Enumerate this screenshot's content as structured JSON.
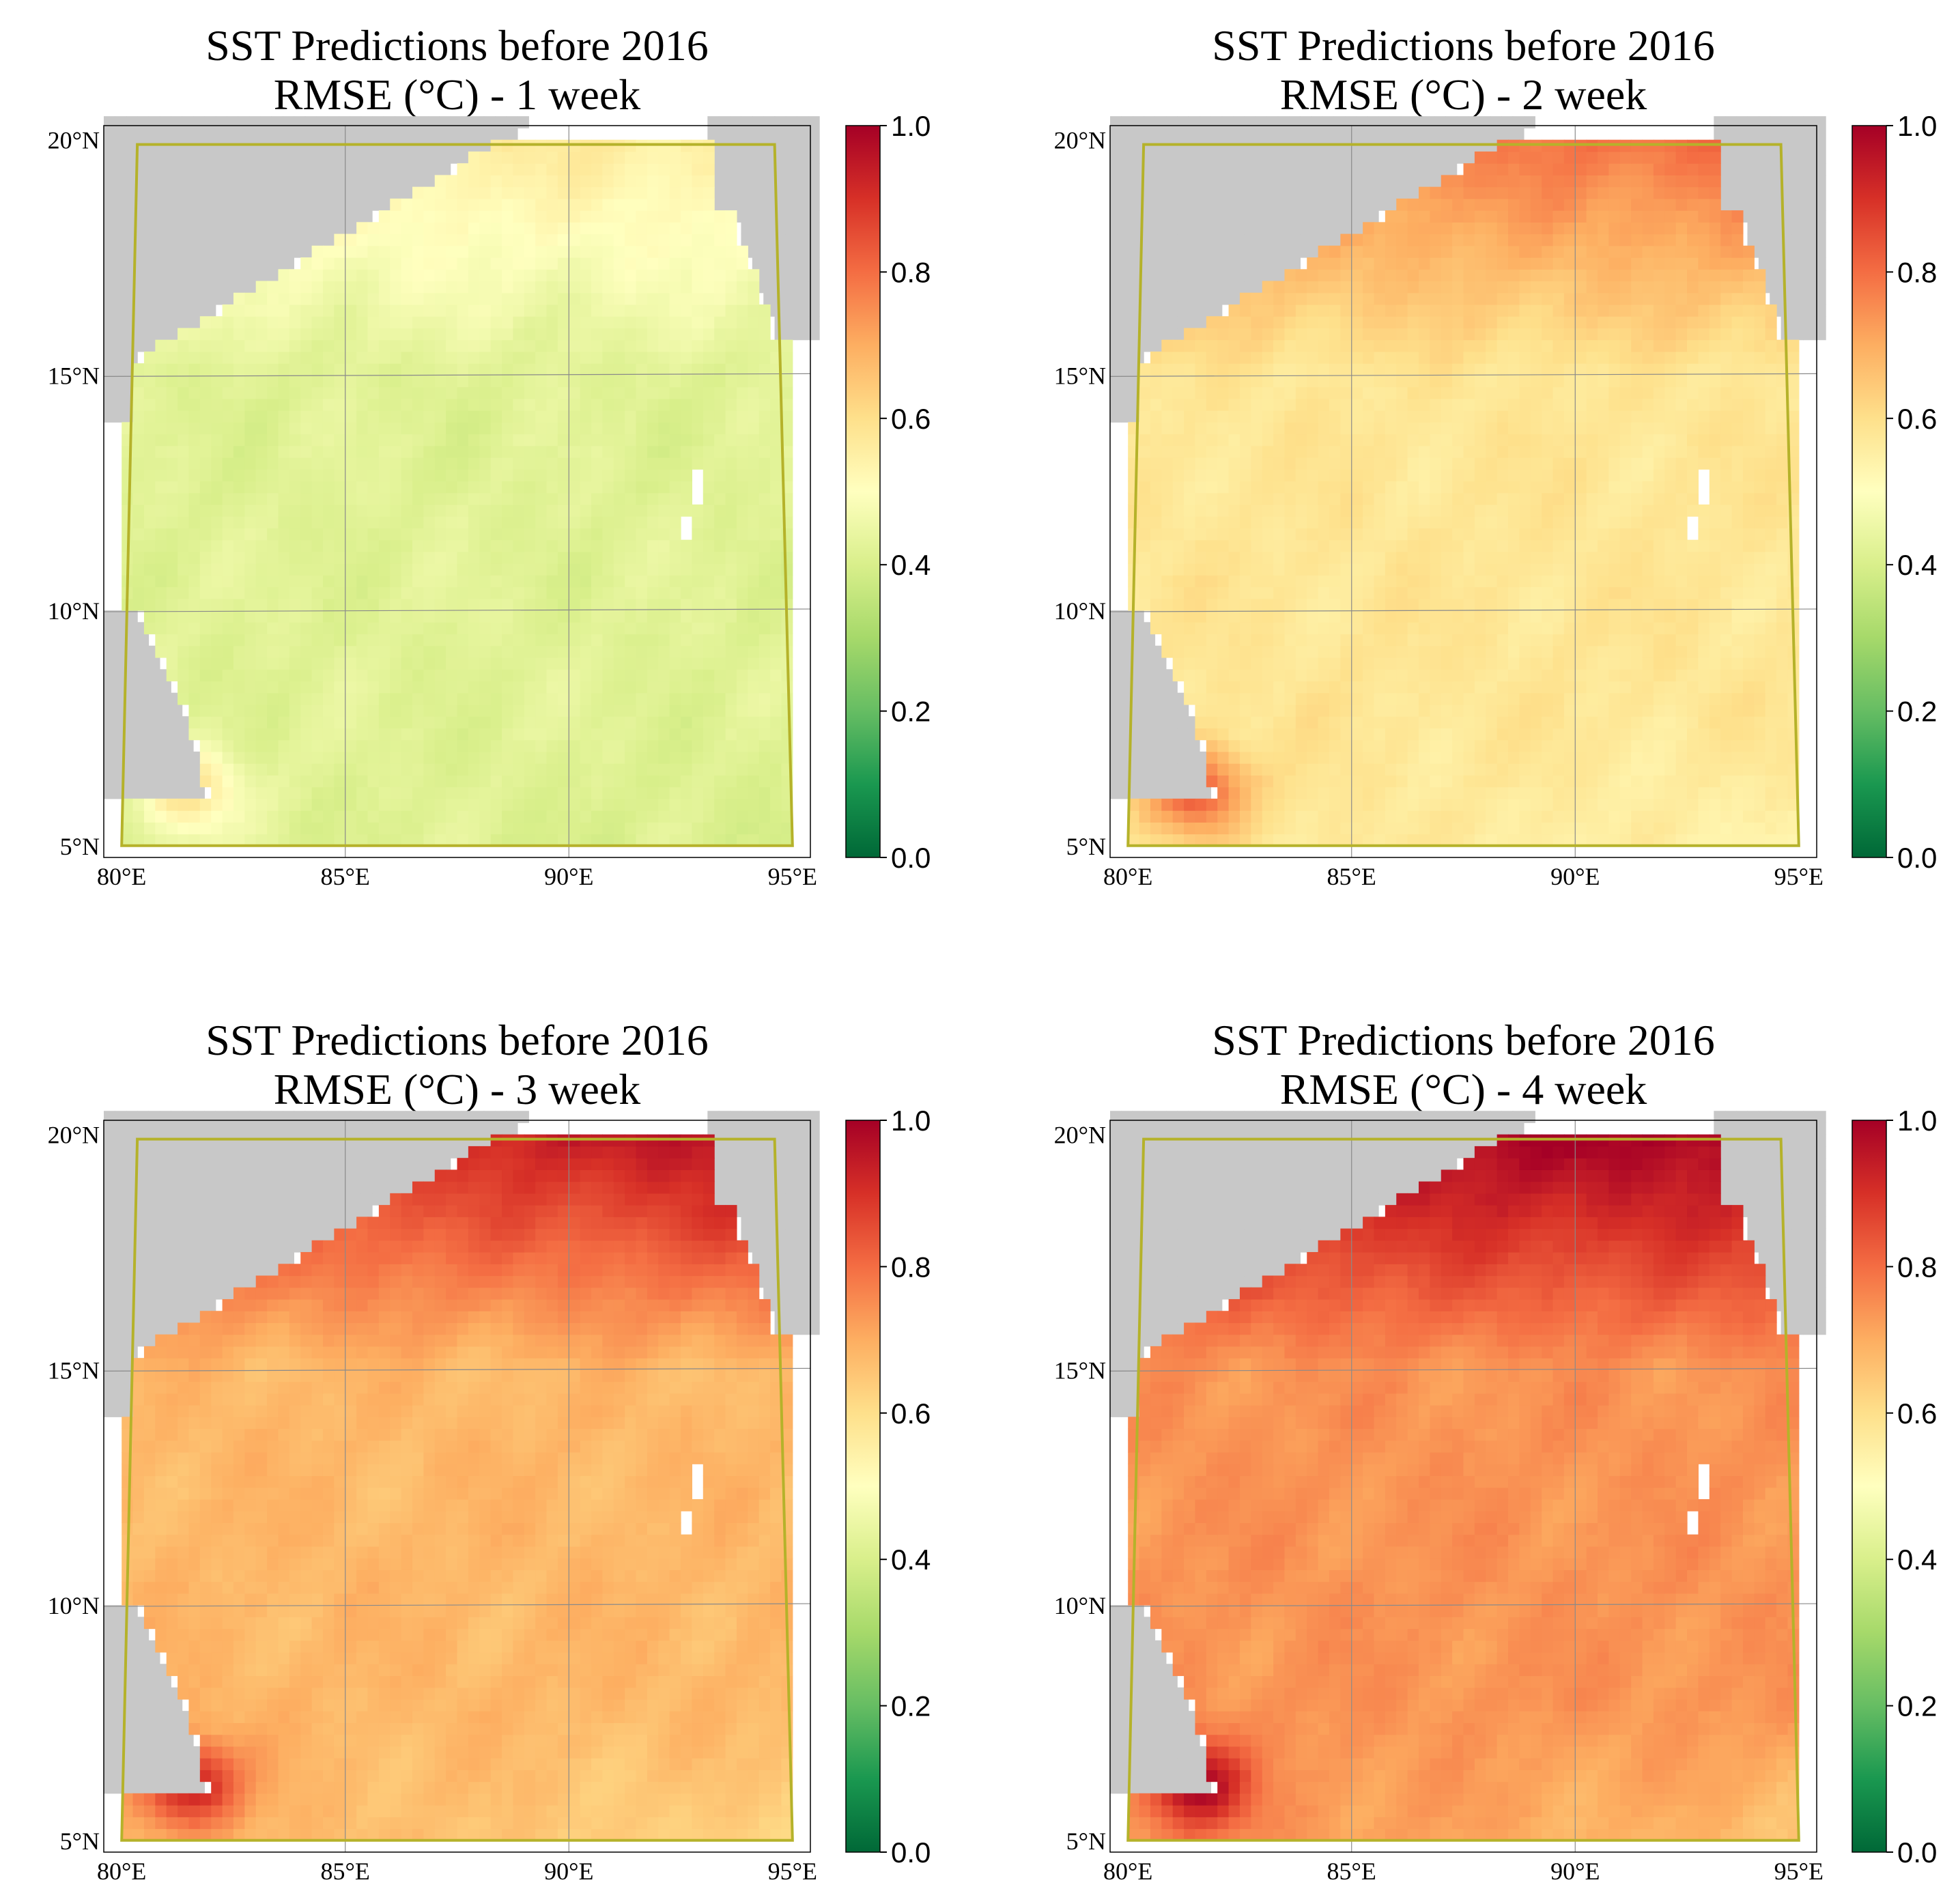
{
  "chart_data": [
    {
      "type": "heatmap",
      "title": "SST Predictions before 2016",
      "subtitle": "RMSE (°C) - 1 week",
      "lead_weeks": 1,
      "x_ticks": [
        "80°E",
        "85°E",
        "90°E",
        "95°E"
      ],
      "y_ticks": [
        "5°N",
        "10°N",
        "15°N",
        "20°N"
      ],
      "xlim": [
        80,
        95
      ],
      "ylim": [
        5,
        20
      ],
      "colorbar": {
        "ticks": [
          "0.0",
          "0.2",
          "0.4",
          "0.6",
          "0.8",
          "1.0"
        ],
        "range": [
          0,
          1
        ],
        "colormap": "RdYlGn_r"
      },
      "rmse_field": {
        "base": 0.42,
        "north_bay": 0.56,
        "northeast": 0.56,
        "coast_near_sri_lanka": 0.6,
        "south": 0.4
      }
    },
    {
      "type": "heatmap",
      "title": "SST Predictions before 2016",
      "subtitle": "RMSE (°C) - 2 week",
      "lead_weeks": 2,
      "x_ticks": [
        "80°E",
        "85°E",
        "90°E",
        "95°E"
      ],
      "y_ticks": [
        "5°N",
        "10°N",
        "15°N",
        "20°N"
      ],
      "xlim": [
        80,
        95
      ],
      "ylim": [
        5,
        20
      ],
      "colorbar": {
        "ticks": [
          "0.0",
          "0.2",
          "0.4",
          "0.6",
          "0.8",
          "1.0"
        ],
        "range": [
          0,
          1
        ],
        "colormap": "RdYlGn_r"
      },
      "rmse_field": {
        "base": 0.58,
        "north_bay": 0.78,
        "northeast": 0.82,
        "coast_near_sri_lanka": 0.85,
        "south": 0.54
      }
    },
    {
      "type": "heatmap",
      "title": "SST Predictions before 2016",
      "subtitle": "RMSE (°C) - 3 week",
      "lead_weeks": 3,
      "x_ticks": [
        "80°E",
        "85°E",
        "90°E",
        "95°E"
      ],
      "y_ticks": [
        "5°N",
        "10°N",
        "15°N",
        "20°N"
      ],
      "xlim": [
        80,
        95
      ],
      "ylim": [
        5,
        20
      ],
      "colorbar": {
        "ticks": [
          "0.0",
          "0.2",
          "0.4",
          "0.6",
          "0.8",
          "1.0"
        ],
        "range": [
          0,
          1
        ],
        "colormap": "RdYlGn_r"
      },
      "rmse_field": {
        "base": 0.68,
        "north_bay": 0.92,
        "northeast": 1.0,
        "coast_near_sri_lanka": 0.95,
        "south": 0.62
      }
    },
    {
      "type": "heatmap",
      "title": "SST Predictions before 2016",
      "subtitle": "RMSE (°C) - 4 week",
      "lead_weeks": 4,
      "x_ticks": [
        "80°E",
        "85°E",
        "90°E",
        "95°E"
      ],
      "y_ticks": [
        "5°N",
        "10°N",
        "15°N",
        "20°N"
      ],
      "xlim": [
        80,
        95
      ],
      "ylim": [
        5,
        20
      ],
      "colorbar": {
        "ticks": [
          "0.0",
          "0.2",
          "0.4",
          "0.6",
          "0.8",
          "1.0"
        ],
        "range": [
          0,
          1
        ],
        "colormap": "RdYlGn_r"
      },
      "rmse_field": {
        "base": 0.74,
        "north_bay": 1.0,
        "northeast": 1.0,
        "coast_near_sri_lanka": 1.0,
        "south": 0.66
      }
    }
  ],
  "colors": {
    "land": "#c8c8c8",
    "box": "#b5b22a",
    "grid": "#8a8a8a"
  }
}
